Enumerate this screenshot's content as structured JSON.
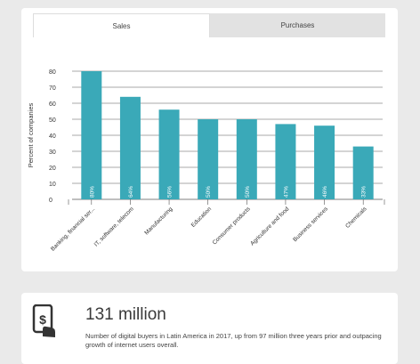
{
  "tabs": [
    {
      "label": "Sales",
      "active": true
    },
    {
      "label": "Purchases",
      "active": false
    }
  ],
  "chart_data": {
    "type": "bar",
    "ylabel": "Percent of companies",
    "ylim": [
      0,
      80
    ],
    "yticks": [
      0,
      10,
      20,
      30,
      40,
      50,
      60,
      70,
      80
    ],
    "categories": [
      "Banking, financial ser...",
      "IT, software, telecom",
      "Manufacturing",
      "Education",
      "Consumer products",
      "Agriculture and food",
      "Business services",
      "Chemicals"
    ],
    "values": [
      80,
      64,
      56,
      50,
      50,
      47,
      46,
      33
    ],
    "data_labels": [
      "80%",
      "64%",
      "56%",
      "50%",
      "50%",
      "47%",
      "46%",
      "33%"
    ],
    "bar_color": "#3aa9b8",
    "grid": true
  },
  "stat": {
    "value": "131 million",
    "description": "Number of digital buyers in Latin America in 2017, up from 97 million three years prior and outpacing growth of internet users overall.",
    "icon": "mobile-payment-icon"
  }
}
